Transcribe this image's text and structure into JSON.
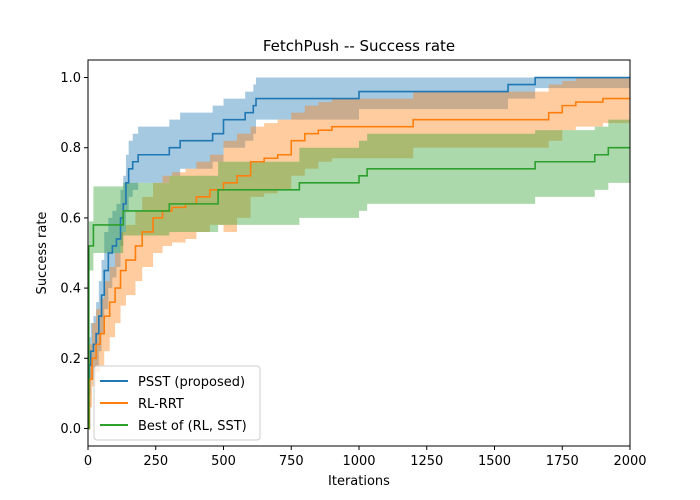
{
  "chart_data": {
    "type": "line",
    "title": "FetchPush -- Success rate",
    "xlabel": "Iterations",
    "ylabel": "Success rate",
    "xlim": [
      0,
      2000
    ],
    "ylim": [
      -0.05,
      1.05
    ],
    "xticks": [
      0,
      250,
      500,
      750,
      1000,
      1250,
      1500,
      1750,
      2000
    ],
    "xtick_labels": [
      "0",
      "250",
      "500",
      "750",
      "1000",
      "1250",
      "1500",
      "1750",
      "2000"
    ],
    "yticks": [
      0.0,
      0.2,
      0.4,
      0.6,
      0.8,
      1.0
    ],
    "ytick_labels": [
      "0.0",
      "0.2",
      "0.4",
      "0.6",
      "0.8",
      "1.0"
    ],
    "grid": false,
    "legend_position": "lower left",
    "step_style": "post",
    "series": [
      {
        "name": "PSST (proposed)",
        "color": "#1f77b4",
        "x": [
          0,
          5,
          10,
          20,
          30,
          40,
          50,
          60,
          75,
          90,
          105,
          120,
          130,
          140,
          150,
          165,
          185,
          200,
          250,
          300,
          340,
          400,
          460,
          500,
          540,
          580,
          610,
          620,
          700,
          1000,
          1300,
          1550,
          1650,
          2000
        ],
        "y": [
          0.0,
          0.18,
          0.22,
          0.24,
          0.27,
          0.32,
          0.38,
          0.45,
          0.5,
          0.52,
          0.54,
          0.6,
          0.64,
          0.7,
          0.74,
          0.76,
          0.78,
          0.78,
          0.78,
          0.8,
          0.82,
          0.82,
          0.84,
          0.88,
          0.88,
          0.9,
          0.92,
          0.94,
          0.94,
          0.96,
          0.96,
          0.98,
          1.0,
          1.0
        ],
        "lower": [
          0.0,
          0.1,
          0.14,
          0.16,
          0.18,
          0.22,
          0.27,
          0.34,
          0.4,
          0.43,
          0.46,
          0.52,
          0.56,
          0.62,
          0.66,
          0.68,
          0.7,
          0.7,
          0.7,
          0.72,
          0.74,
          0.74,
          0.76,
          0.8,
          0.8,
          0.82,
          0.84,
          0.88,
          0.88,
          0.91,
          0.91,
          0.94,
          0.97,
          0.97
        ],
        "upper": [
          0.0,
          0.26,
          0.3,
          0.32,
          0.36,
          0.42,
          0.48,
          0.56,
          0.6,
          0.62,
          0.64,
          0.68,
          0.72,
          0.78,
          0.82,
          0.84,
          0.86,
          0.86,
          0.86,
          0.88,
          0.9,
          0.9,
          0.92,
          0.94,
          0.94,
          0.96,
          0.98,
          1.0,
          1.0,
          1.0,
          1.0,
          1.0,
          1.0,
          1.0
        ]
      },
      {
        "name": "RL-RRT",
        "color": "#ff7f0e",
        "x": [
          0,
          5,
          15,
          30,
          45,
          60,
          80,
          100,
          120,
          140,
          175,
          200,
          240,
          275,
          310,
          360,
          400,
          450,
          500,
          550,
          600,
          650,
          700,
          750,
          800,
          850,
          900,
          1000,
          1100,
          1200,
          1300,
          1400,
          1500,
          1600,
          1700,
          1750,
          1800,
          1900,
          2000
        ],
        "y": [
          0.0,
          0.14,
          0.2,
          0.24,
          0.27,
          0.32,
          0.36,
          0.4,
          0.45,
          0.48,
          0.52,
          0.56,
          0.6,
          0.62,
          0.63,
          0.64,
          0.66,
          0.68,
          0.7,
          0.72,
          0.76,
          0.77,
          0.78,
          0.82,
          0.84,
          0.85,
          0.86,
          0.86,
          0.86,
          0.88,
          0.88,
          0.88,
          0.88,
          0.88,
          0.9,
          0.92,
          0.93,
          0.94,
          0.94
        ],
        "lower": [
          0.0,
          0.06,
          0.12,
          0.16,
          0.18,
          0.22,
          0.26,
          0.3,
          0.35,
          0.38,
          0.42,
          0.46,
          0.5,
          0.52,
          0.53,
          0.54,
          0.56,
          0.58,
          0.56,
          0.6,
          0.66,
          0.67,
          0.68,
          0.72,
          0.74,
          0.76,
          0.77,
          0.77,
          0.77,
          0.8,
          0.8,
          0.8,
          0.8,
          0.8,
          0.82,
          0.85,
          0.86,
          0.87,
          0.87
        ],
        "upper": [
          0.0,
          0.24,
          0.3,
          0.34,
          0.37,
          0.42,
          0.46,
          0.5,
          0.56,
          0.58,
          0.62,
          0.66,
          0.7,
          0.72,
          0.73,
          0.74,
          0.76,
          0.78,
          0.82,
          0.84,
          0.86,
          0.87,
          0.88,
          0.9,
          0.92,
          0.93,
          0.94,
          0.94,
          0.94,
          0.96,
          0.96,
          0.96,
          0.96,
          0.96,
          0.98,
          0.99,
          1.0,
          1.0,
          1.0
        ]
      },
      {
        "name": "Best of (RL, SST)",
        "color": "#2ca02c",
        "x": [
          0,
          3,
          20,
          100,
          130,
          300,
          480,
          780,
          1000,
          1030,
          1400,
          1650,
          1870,
          1920,
          2000
        ],
        "y": [
          0.0,
          0.52,
          0.58,
          0.58,
          0.62,
          0.64,
          0.68,
          0.7,
          0.72,
          0.74,
          0.74,
          0.76,
          0.78,
          0.8,
          0.8
        ],
        "lower": [
          0.0,
          0.45,
          0.5,
          0.5,
          0.55,
          0.56,
          0.58,
          0.6,
          0.62,
          0.64,
          0.64,
          0.66,
          0.68,
          0.7,
          0.7
        ],
        "upper": [
          0.0,
          0.59,
          0.69,
          0.69,
          0.7,
          0.72,
          0.76,
          0.8,
          0.82,
          0.84,
          0.84,
          0.85,
          0.86,
          0.88,
          0.88
        ]
      }
    ]
  }
}
